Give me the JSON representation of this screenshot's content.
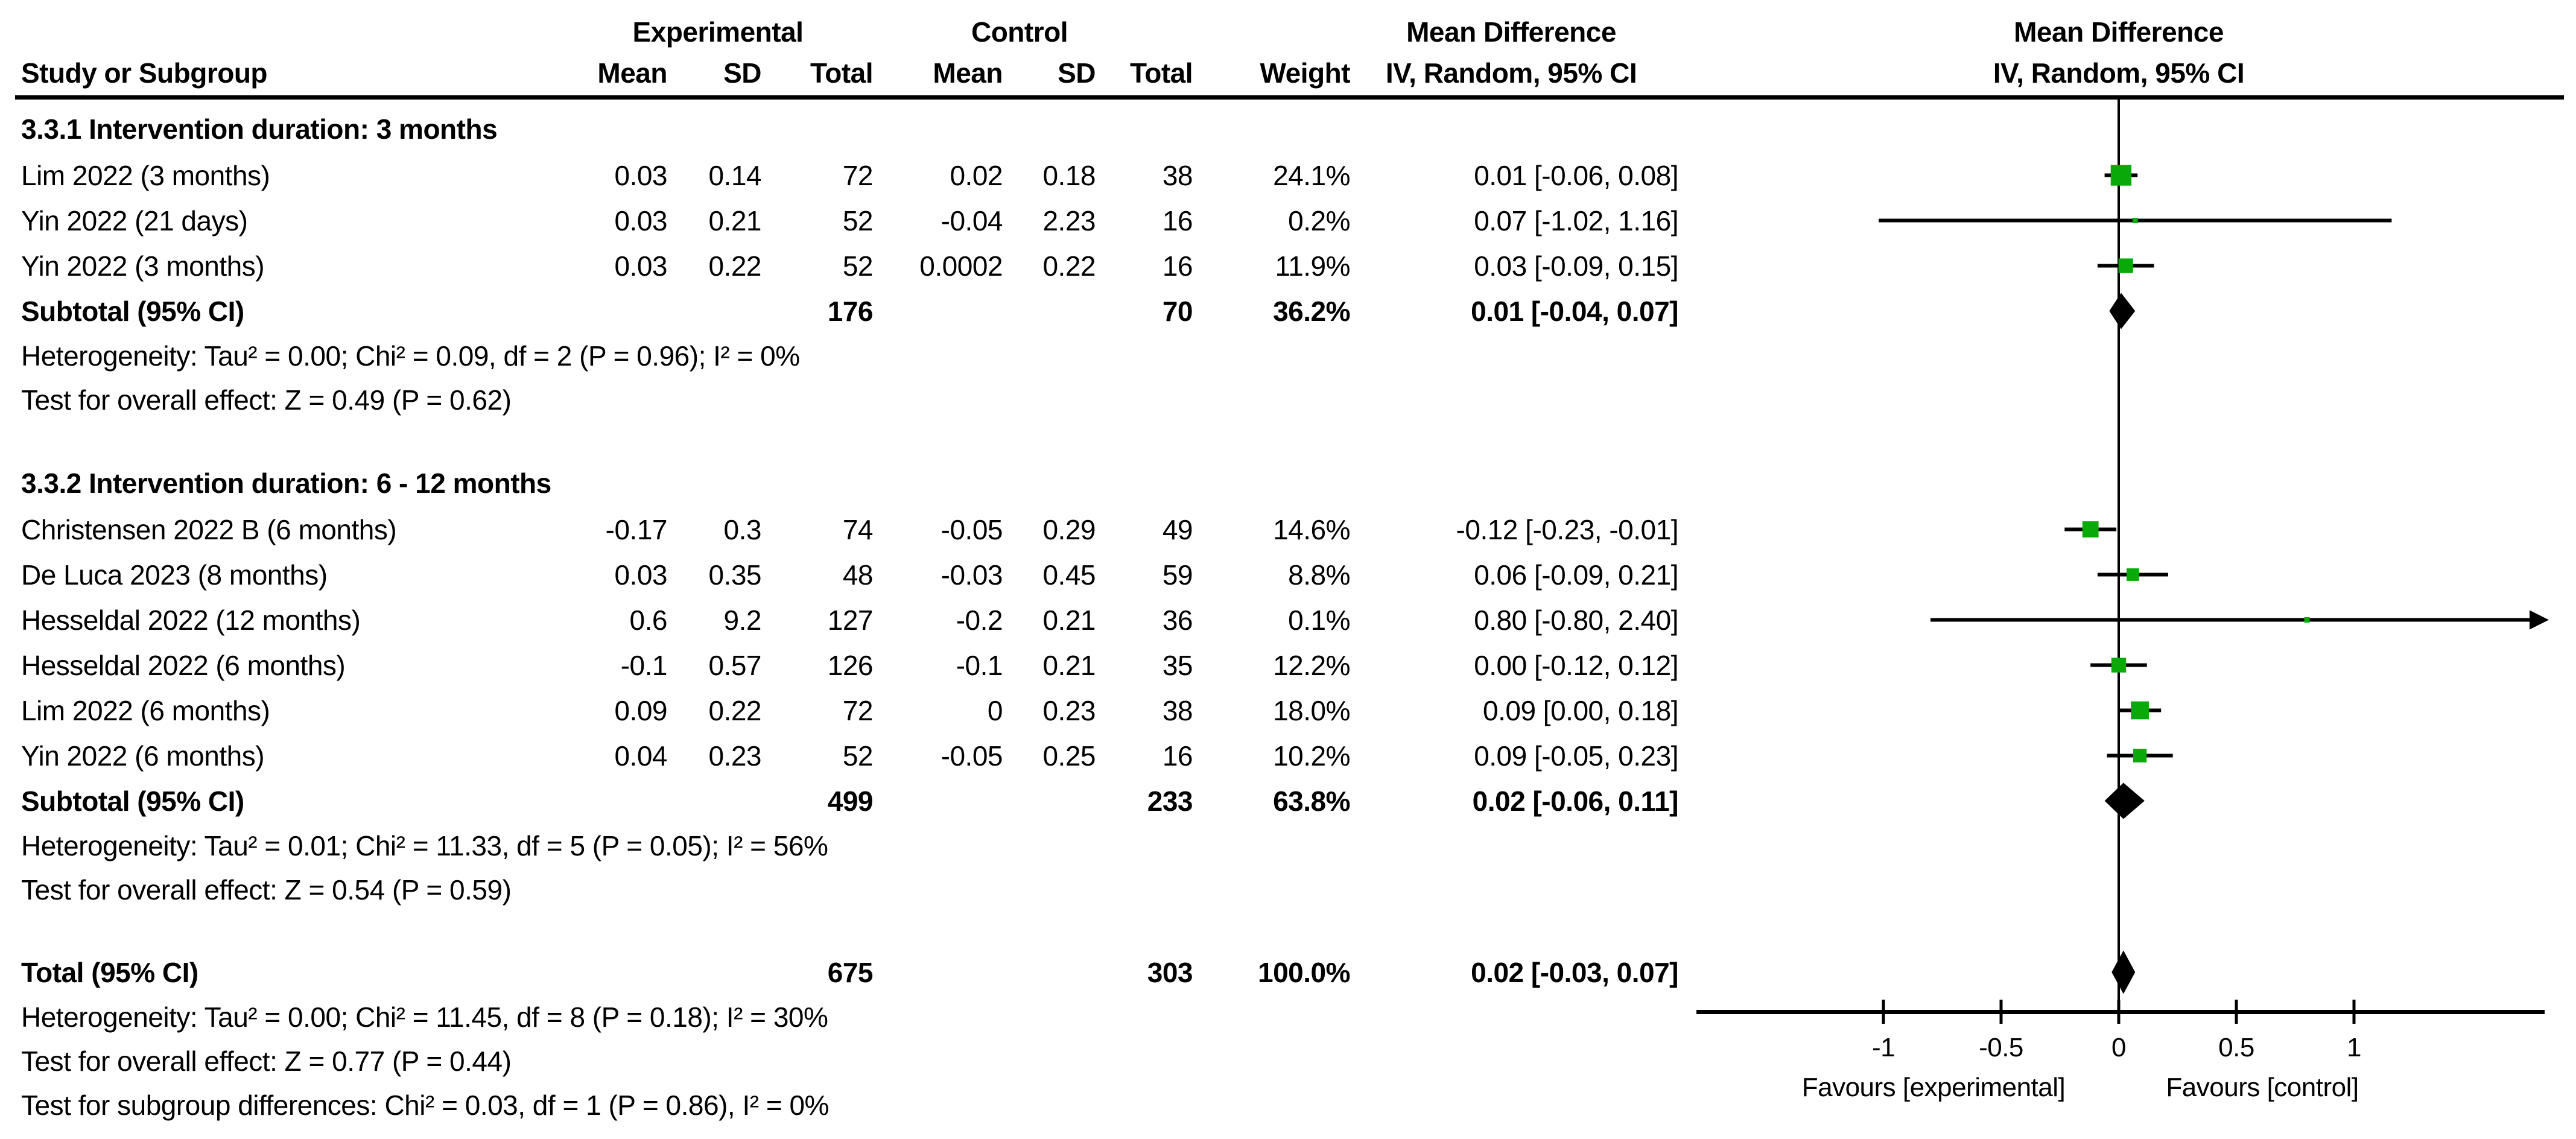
{
  "header": {
    "experimental": "Experimental",
    "control": "Control",
    "study_or_subgroup": "Study or Subgroup",
    "mean1": "Mean",
    "sd1": "SD",
    "total1": "Total",
    "mean2": "Mean",
    "sd2": "SD",
    "total2": "Total",
    "weight": "Weight",
    "md_table_title": "Mean Difference",
    "md_table_sub": "IV, Random, 95% CI",
    "md_plot_title": "Mean Difference",
    "md_plot_sub": "IV, Random, 95% CI"
  },
  "axis": {
    "ticks": [
      "-1",
      "-0.5",
      "0",
      "0.5",
      "1"
    ],
    "tick_values": [
      -1,
      -0.5,
      0,
      0.5,
      1
    ],
    "favours_left": "Favours [experimental]",
    "favours_right": "Favours [control]"
  },
  "colors": {
    "marker_green": "#08a908",
    "line_black": "#000000"
  },
  "rows": [
    {
      "kind": "subgroup",
      "label": "3.3.1 Intervention duration: 3 months"
    },
    {
      "kind": "study",
      "label": "Lim 2022 (3 months)",
      "exp_mean": "0.03",
      "exp_sd": "0.14",
      "exp_total": "72",
      "ctl_mean": "0.02",
      "ctl_sd": "0.18",
      "ctl_total": "38",
      "weight": "24.1%",
      "ci_text": "0.01 [-0.06, 0.08]",
      "est": 0.01,
      "lo": -0.06,
      "hi": 0.08,
      "w": 24.1
    },
    {
      "kind": "study",
      "label": "Yin 2022 (21 days)",
      "exp_mean": "0.03",
      "exp_sd": "0.21",
      "exp_total": "52",
      "ctl_mean": "-0.04",
      "ctl_sd": "2.23",
      "ctl_total": "16",
      "weight": "0.2%",
      "ci_text": "0.07 [-1.02, 1.16]",
      "est": 0.07,
      "lo": -1.02,
      "hi": 1.16,
      "w": 0.2
    },
    {
      "kind": "study",
      "label": "Yin 2022 (3 months)",
      "exp_mean": "0.03",
      "exp_sd": "0.22",
      "exp_total": "52",
      "ctl_mean": "0.0002",
      "ctl_sd": "0.22",
      "ctl_total": "16",
      "weight": "11.9%",
      "ci_text": "0.03 [-0.09, 0.15]",
      "est": 0.03,
      "lo": -0.09,
      "hi": 0.15,
      "w": 11.9
    },
    {
      "kind": "subtotal",
      "label": "Subtotal (95% CI)",
      "exp_total": "176",
      "ctl_total": "70",
      "weight": "36.2%",
      "ci_text": "0.01 [-0.04, 0.07]",
      "est": 0.01,
      "lo": -0.04,
      "hi": 0.07
    },
    {
      "kind": "stat",
      "label": "Heterogeneity: Tau² = 0.00; Chi² = 0.09, df = 2 (P = 0.96); I² = 0%"
    },
    {
      "kind": "stat",
      "label": "Test for overall effect: Z = 0.49 (P = 0.62)"
    },
    {
      "kind": "spacer",
      "label": ""
    },
    {
      "kind": "subgroup",
      "label": "3.3.2 Intervention duration: 6 - 12 months"
    },
    {
      "kind": "study",
      "label": "Christensen 2022 B (6 months)",
      "exp_mean": "-0.17",
      "exp_sd": "0.3",
      "exp_total": "74",
      "ctl_mean": "-0.05",
      "ctl_sd": "0.29",
      "ctl_total": "49",
      "weight": "14.6%",
      "ci_text": "-0.12 [-0.23, -0.01]",
      "est": -0.12,
      "lo": -0.23,
      "hi": -0.01,
      "w": 14.6
    },
    {
      "kind": "study",
      "label": "De Luca 2023 (8 months)",
      "exp_mean": "0.03",
      "exp_sd": "0.35",
      "exp_total": "48",
      "ctl_mean": "-0.03",
      "ctl_sd": "0.45",
      "ctl_total": "59",
      "weight": "8.8%",
      "ci_text": "0.06 [-0.09, 0.21]",
      "est": 0.06,
      "lo": -0.09,
      "hi": 0.21,
      "w": 8.8
    },
    {
      "kind": "study",
      "label": "Hesseldal 2022 (12 months)",
      "exp_mean": "0.6",
      "exp_sd": "9.2",
      "exp_total": "127",
      "ctl_mean": "-0.2",
      "ctl_sd": "0.21",
      "ctl_total": "36",
      "weight": "0.1%",
      "ci_text": "0.80 [-0.80, 2.40]",
      "est": 0.8,
      "lo": -0.8,
      "hi": 2.4,
      "w": 0.1,
      "arrow_hi": true
    },
    {
      "kind": "study",
      "label": "Hesseldal 2022 (6 months)",
      "exp_mean": "-0.1",
      "exp_sd": "0.57",
      "exp_total": "126",
      "ctl_mean": "-0.1",
      "ctl_sd": "0.21",
      "ctl_total": "35",
      "weight": "12.2%",
      "ci_text": "0.00 [-0.12, 0.12]",
      "est": 0.0,
      "lo": -0.12,
      "hi": 0.12,
      "w": 12.2
    },
    {
      "kind": "study",
      "label": "Lim 2022 (6 months)",
      "exp_mean": "0.09",
      "exp_sd": "0.22",
      "exp_total": "72",
      "ctl_mean": "0",
      "ctl_sd": "0.23",
      "ctl_total": "38",
      "weight": "18.0%",
      "ci_text": "0.09 [0.00, 0.18]",
      "est": 0.09,
      "lo": 0.0,
      "hi": 0.18,
      "w": 18.0
    },
    {
      "kind": "study",
      "label": "Yin 2022 (6 months)",
      "exp_mean": "0.04",
      "exp_sd": "0.23",
      "exp_total": "52",
      "ctl_mean": "-0.05",
      "ctl_sd": "0.25",
      "ctl_total": "16",
      "weight": "10.2%",
      "ci_text": "0.09 [-0.05, 0.23]",
      "est": 0.09,
      "lo": -0.05,
      "hi": 0.23,
      "w": 10.2
    },
    {
      "kind": "subtotal",
      "label": "Subtotal (95% CI)",
      "exp_total": "499",
      "ctl_total": "233",
      "weight": "63.8%",
      "ci_text": "0.02 [-0.06, 0.11]",
      "est": 0.02,
      "lo": -0.06,
      "hi": 0.11
    },
    {
      "kind": "stat",
      "label": "Heterogeneity: Tau² = 0.01; Chi² = 11.33, df = 5 (P = 0.05); I² = 56%"
    },
    {
      "kind": "stat",
      "label": "Test for overall effect: Z = 0.54 (P = 0.59)"
    },
    {
      "kind": "spacer",
      "label": ""
    },
    {
      "kind": "total",
      "label": "Total (95% CI)",
      "exp_total": "675",
      "ctl_total": "303",
      "weight": "100.0%",
      "ci_text": "0.02 [-0.03, 0.07]",
      "est": 0.02,
      "lo": -0.03,
      "hi": 0.07
    },
    {
      "kind": "stat",
      "label": "Heterogeneity: Tau² = 0.00; Chi² = 11.45, df = 8 (P = 0.18); I² = 30%"
    },
    {
      "kind": "stat",
      "label": "Test for overall effect: Z = 0.77 (P = 0.44)"
    },
    {
      "kind": "stat",
      "label": "Test for subgroup differences: Chi² = 0.03, df = 1 (P = 0.86), I² = 0%"
    }
  ],
  "chart_data": {
    "type": "forest",
    "effect_measure": "Mean Difference, IV, Random, 95% CI",
    "title": "Mean Difference",
    "subtitle": "IV, Random, 95% CI",
    "x_ticks": [
      -1,
      -0.5,
      0,
      0.5,
      1
    ],
    "xlim": [
      -1.8,
      1.8
    ],
    "favours_left": "Favours [experimental]",
    "favours_right": "Favours [control]",
    "subgroups": [
      {
        "name": "3.3.1 Intervention duration: 3 months",
        "studies": [
          {
            "label": "Lim 2022 (3 months)",
            "est": 0.01,
            "lo": -0.06,
            "hi": 0.08,
            "weight_pct": 24.1
          },
          {
            "label": "Yin 2022 (21 days)",
            "est": 0.07,
            "lo": -1.02,
            "hi": 1.16,
            "weight_pct": 0.2
          },
          {
            "label": "Yin 2022 (3 months)",
            "est": 0.03,
            "lo": -0.09,
            "hi": 0.15,
            "weight_pct": 11.9
          }
        ],
        "subtotal": {
          "est": 0.01,
          "lo": -0.04,
          "hi": 0.07,
          "weight_pct": 36.2,
          "exp_total": 176,
          "ctl_total": 70
        },
        "heterogeneity": "Tau² = 0.00; Chi² = 0.09, df = 2 (P = 0.96); I² = 0%",
        "overall_effect": "Z = 0.49 (P = 0.62)"
      },
      {
        "name": "3.3.2 Intervention duration: 6 - 12 months",
        "studies": [
          {
            "label": "Christensen 2022 B (6 months)",
            "est": -0.12,
            "lo": -0.23,
            "hi": -0.01,
            "weight_pct": 14.6
          },
          {
            "label": "De Luca 2023 (8 months)",
            "est": 0.06,
            "lo": -0.09,
            "hi": 0.21,
            "weight_pct": 8.8
          },
          {
            "label": "Hesseldal 2022 (12 months)",
            "est": 0.8,
            "lo": -0.8,
            "hi": 2.4,
            "weight_pct": 0.1,
            "ci_exceeds_right": true
          },
          {
            "label": "Hesseldal 2022 (6 months)",
            "est": 0.0,
            "lo": -0.12,
            "hi": 0.12,
            "weight_pct": 12.2
          },
          {
            "label": "Lim 2022 (6 months)",
            "est": 0.09,
            "lo": 0.0,
            "hi": 0.18,
            "weight_pct": 18.0
          },
          {
            "label": "Yin 2022 (6 months)",
            "est": 0.09,
            "lo": -0.05,
            "hi": 0.23,
            "weight_pct": 10.2
          }
        ],
        "subtotal": {
          "est": 0.02,
          "lo": -0.06,
          "hi": 0.11,
          "weight_pct": 63.8,
          "exp_total": 499,
          "ctl_total": 233
        },
        "heterogeneity": "Tau² = 0.01; Chi² = 11.33, df = 5 (P = 0.05); I² = 56%",
        "overall_effect": "Z = 0.54 (P = 0.59)"
      }
    ],
    "total": {
      "est": 0.02,
      "lo": -0.03,
      "hi": 0.07,
      "weight_pct": 100.0,
      "exp_total": 675,
      "ctl_total": 303
    },
    "total_heterogeneity": "Tau² = 0.00; Chi² = 11.45, df = 8 (P = 0.18); I² = 30%",
    "total_overall_effect": "Z = 0.77 (P = 0.44)",
    "subgroup_differences": "Chi² = 0.03, df = 1 (P = 0.86), I² = 0%"
  }
}
